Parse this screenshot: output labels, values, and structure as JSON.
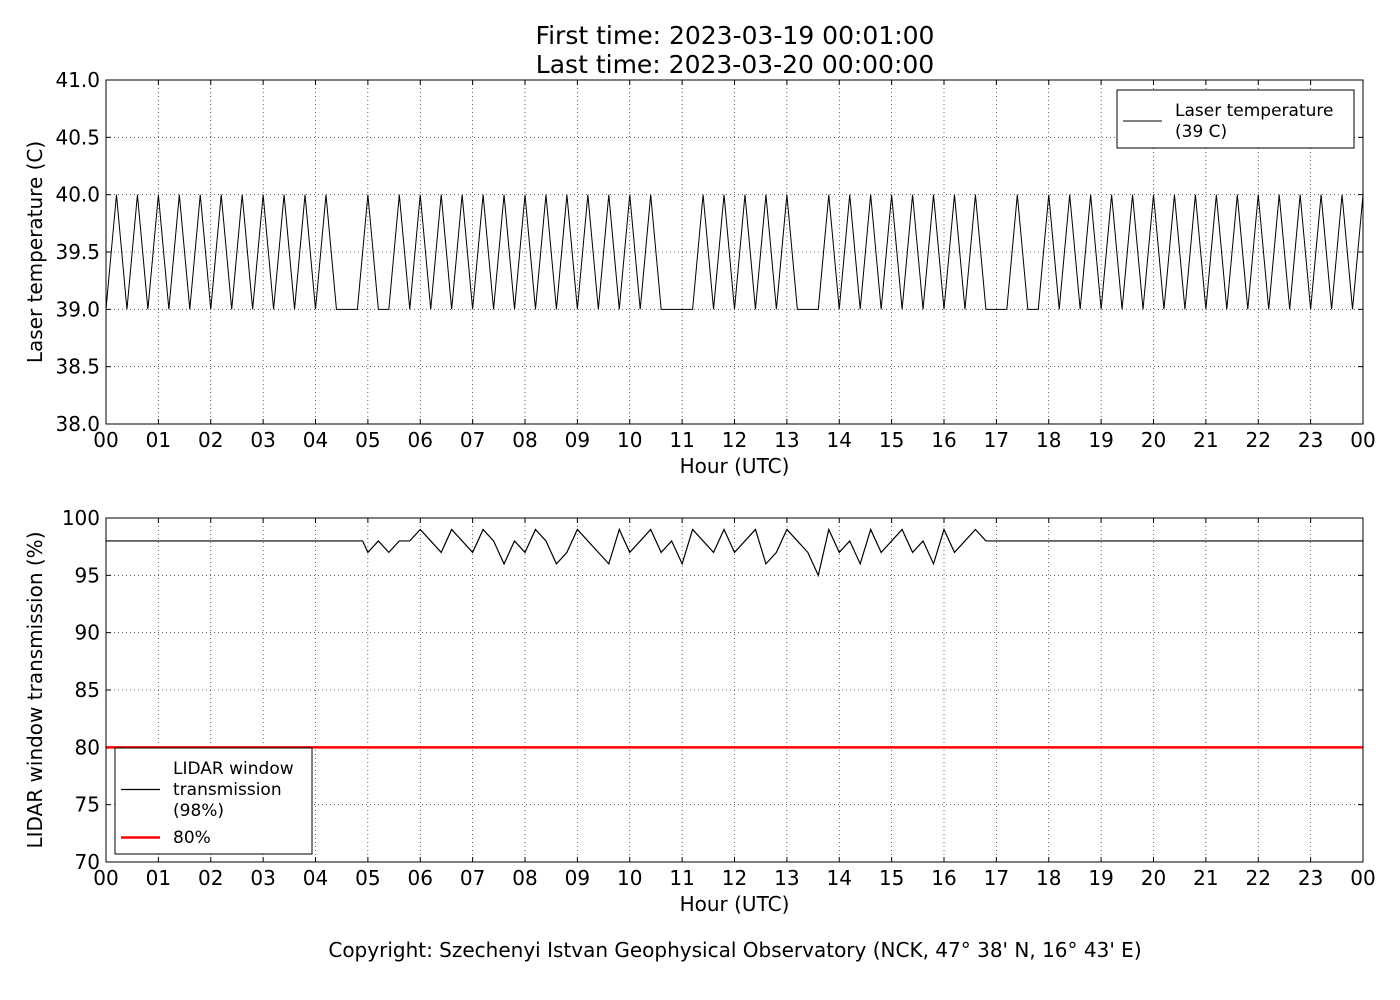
{
  "title_lines": [
    "First time: 2023-03-19 00:01:00",
    "Last time: 2023-03-20 00:00:00"
  ],
  "footer": "Copyright: Szechenyi Istvan Geophysical Observatory (NCK, 47° 38' N, 16° 43' E)",
  "chart_data": [
    {
      "type": "line",
      "xlabel": "Hour (UTC)",
      "ylabel": "Laser temperature (C)",
      "xlim": [
        0,
        24
      ],
      "xticks": [
        {
          "value": 0,
          "label": "00"
        },
        {
          "value": 1,
          "label": "01"
        },
        {
          "value": 2,
          "label": "02"
        },
        {
          "value": 3,
          "label": "03"
        },
        {
          "value": 4,
          "label": "04"
        },
        {
          "value": 5,
          "label": "05"
        },
        {
          "value": 6,
          "label": "06"
        },
        {
          "value": 7,
          "label": "07"
        },
        {
          "value": 8,
          "label": "08"
        },
        {
          "value": 9,
          "label": "09"
        },
        {
          "value": 10,
          "label": "10"
        },
        {
          "value": 11,
          "label": "11"
        },
        {
          "value": 12,
          "label": "12"
        },
        {
          "value": 13,
          "label": "13"
        },
        {
          "value": 14,
          "label": "14"
        },
        {
          "value": 15,
          "label": "15"
        },
        {
          "value": 16,
          "label": "16"
        },
        {
          "value": 17,
          "label": "17"
        },
        {
          "value": 18,
          "label": "18"
        },
        {
          "value": 19,
          "label": "19"
        },
        {
          "value": 20,
          "label": "20"
        },
        {
          "value": 21,
          "label": "21"
        },
        {
          "value": 22,
          "label": "22"
        },
        {
          "value": 23,
          "label": "23"
        },
        {
          "value": 24,
          "label": "00"
        }
      ],
      "ylim": [
        38,
        41
      ],
      "yticks": [
        {
          "value": 38,
          "label": "38.0"
        },
        38.5,
        {
          "value": 39,
          "label": "39.0"
        },
        39.5,
        {
          "value": 40,
          "label": "40.0"
        },
        40.5,
        {
          "value": 41,
          "label": "41.0"
        }
      ],
      "grid": true,
      "legend": "upper right",
      "series": [
        {
          "name": "Laser temperature\n(39 C)",
          "color": "#000000",
          "x": [
            0,
            0.2,
            0.4,
            0.6,
            0.8,
            1,
            1.2,
            1.4,
            1.6,
            1.8,
            2,
            2.2,
            2.4,
            2.6,
            2.8,
            3,
            3.2,
            3.4,
            3.6,
            3.8,
            4,
            4.2,
            4.4,
            4.6,
            4.8,
            5,
            5.2,
            5.4,
            5.6,
            5.8,
            6,
            6.2,
            6.4,
            6.6,
            6.8,
            7,
            7.2,
            7.4,
            7.6,
            7.8,
            8,
            8.2,
            8.4,
            8.6,
            8.8,
            9,
            9.2,
            9.4,
            9.6,
            9.8,
            10,
            10.2,
            10.4,
            10.6,
            10.8,
            11,
            11.2,
            11.4,
            11.6,
            11.8,
            12,
            12.2,
            12.4,
            12.6,
            12.8,
            13,
            13.2,
            13.4,
            13.6,
            13.8,
            14,
            14.2,
            14.4,
            14.6,
            14.8,
            15,
            15.2,
            15.4,
            15.6,
            15.8,
            16,
            16.2,
            16.4,
            16.6,
            16.8,
            17,
            17.2,
            17.4,
            17.6,
            17.8,
            18,
            18.2,
            18.4,
            18.6,
            18.8,
            19,
            19.2,
            19.4,
            19.6,
            19.8,
            20,
            20.2,
            20.4,
            20.6,
            20.8,
            21,
            21.2,
            21.4,
            21.6,
            21.8,
            22,
            22.2,
            22.4,
            22.6,
            22.8,
            23,
            23.2,
            23.4,
            23.6,
            23.8,
            24
          ],
          "values": [
            39,
            40,
            39,
            40,
            39,
            40,
            39,
            40,
            39,
            40,
            39,
            40,
            39,
            40,
            39,
            40,
            39,
            40,
            39,
            40,
            39,
            40,
            39,
            39,
            39,
            40,
            39,
            39,
            40,
            39,
            40,
            39,
            40,
            39,
            40,
            39,
            40,
            39,
            40,
            39,
            40,
            39,
            40,
            39,
            40,
            39,
            40,
            39,
            40,
            39,
            40,
            39,
            40,
            39,
            39,
            39,
            39,
            40,
            39,
            40,
            39,
            40,
            39,
            40,
            39,
            40,
            39,
            39,
            39,
            40,
            39,
            40,
            39,
            40,
            39,
            40,
            39,
            40,
            39,
            40,
            39,
            40,
            39,
            40,
            39,
            39,
            39,
            40,
            39,
            39,
            40,
            39,
            40,
            39,
            40,
            39,
            40,
            39,
            40,
            39,
            40,
            39,
            40,
            39,
            40,
            39,
            40,
            39,
            40,
            39,
            40,
            39,
            40,
            39,
            40,
            39,
            40,
            39,
            40,
            39,
            40
          ]
        }
      ]
    },
    {
      "type": "line",
      "xlabel": "Hour (UTC)",
      "ylabel": "LIDAR window transmission (%)",
      "xlim": [
        0,
        24
      ],
      "xticks": [
        {
          "value": 0,
          "label": "00"
        },
        {
          "value": 1,
          "label": "01"
        },
        {
          "value": 2,
          "label": "02"
        },
        {
          "value": 3,
          "label": "03"
        },
        {
          "value": 4,
          "label": "04"
        },
        {
          "value": 5,
          "label": "05"
        },
        {
          "value": 6,
          "label": "06"
        },
        {
          "value": 7,
          "label": "07"
        },
        {
          "value": 8,
          "label": "08"
        },
        {
          "value": 9,
          "label": "09"
        },
        {
          "value": 10,
          "label": "10"
        },
        {
          "value": 11,
          "label": "11"
        },
        {
          "value": 12,
          "label": "12"
        },
        {
          "value": 13,
          "label": "13"
        },
        {
          "value": 14,
          "label": "14"
        },
        {
          "value": 15,
          "label": "15"
        },
        {
          "value": 16,
          "label": "16"
        },
        {
          "value": 17,
          "label": "17"
        },
        {
          "value": 18,
          "label": "18"
        },
        {
          "value": 19,
          "label": "19"
        },
        {
          "value": 20,
          "label": "20"
        },
        {
          "value": 21,
          "label": "21"
        },
        {
          "value": 22,
          "label": "22"
        },
        {
          "value": 23,
          "label": "23"
        },
        {
          "value": 24,
          "label": "00"
        }
      ],
      "ylim": [
        70,
        100
      ],
      "yticks": [
        70,
        75,
        80,
        85,
        90,
        95,
        100
      ],
      "grid": true,
      "legend": "lower left",
      "series": [
        {
          "name": "LIDAR window\ntransmission\n(98%)",
          "color": "#000000",
          "width": 1.2,
          "x": [
            0,
            4.9,
            5,
            5.2,
            5.4,
            5.6,
            5.8,
            6,
            6.2,
            6.4,
            6.6,
            6.8,
            7,
            7.2,
            7.4,
            7.6,
            7.8,
            8,
            8.2,
            8.4,
            8.6,
            8.8,
            9,
            9.2,
            9.4,
            9.6,
            9.8,
            10,
            10.2,
            10.4,
            10.6,
            10.8,
            11,
            11.2,
            11.4,
            11.6,
            11.8,
            12,
            12.2,
            12.4,
            12.6,
            12.8,
            13,
            13.2,
            13.4,
            13.6,
            13.8,
            14,
            14.2,
            14.4,
            14.6,
            14.8,
            15,
            15.2,
            15.4,
            15.6,
            15.8,
            16,
            16.2,
            16.4,
            16.6,
            16.8,
            16.9,
            24
          ],
          "values": [
            98,
            98,
            97,
            98,
            97,
            98,
            98,
            99,
            98,
            97,
            99,
            98,
            97,
            99,
            98,
            96,
            98,
            97,
            99,
            98,
            96,
            97,
            99,
            98,
            97,
            96,
            99,
            97,
            98,
            99,
            97,
            98,
            96,
            99,
            98,
            97,
            99,
            97,
            98,
            99,
            96,
            97,
            99,
            98,
            97,
            95,
            99,
            97,
            98,
            96,
            99,
            97,
            98,
            99,
            97,
            98,
            96,
            99,
            97,
            98,
            99,
            98,
            98,
            98
          ]
        },
        {
          "name": "80%",
          "color": "#ff0000",
          "width": 2.5,
          "x": [
            0,
            24
          ],
          "values": [
            80,
            80
          ]
        }
      ]
    }
  ]
}
